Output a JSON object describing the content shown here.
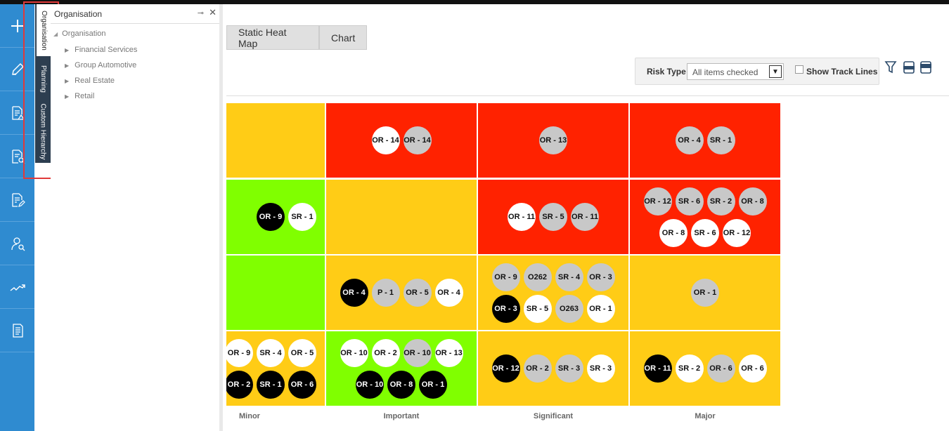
{
  "nav": {
    "items": [
      {
        "icon": "plus-icon"
      },
      {
        "icon": "pencil-icon"
      },
      {
        "icon": "document-warning-icon"
      },
      {
        "icon": "document-search-icon"
      },
      {
        "icon": "document-edit-icon"
      },
      {
        "icon": "user-search-icon"
      },
      {
        "icon": "trend-icon"
      },
      {
        "icon": "document-list-icon"
      }
    ]
  },
  "vertical_tabs": [
    "Organisation",
    "Planning",
    "Custom Hierarchy"
  ],
  "tree": {
    "header": "Organisation",
    "pin_icon": "pin-icon",
    "close": "✕",
    "root": "Organisation",
    "items": [
      "Financial Services",
      "Group Automotive",
      "Real Estate",
      "Retail"
    ]
  },
  "tabs": [
    "Static Heat Map",
    "Chart"
  ],
  "toolbar": {
    "risk_type_label": "Risk Type",
    "risk_type_value": "All items checked",
    "show_track_lines_label": "Show Track Lines",
    "icons": [
      "filter-icon",
      "doc-export-icon",
      "pdf-export-icon"
    ]
  },
  "heatmap": {
    "colors": {
      "red": "#ff2200",
      "orange": "#ffcc16",
      "green": "#80ff00"
    },
    "x_labels": [
      "Minor",
      "Important",
      "Significant",
      "Major"
    ],
    "rows": [
      [
        {
          "color": "orange",
          "bubbles": []
        },
        {
          "color": "red",
          "bubbles": [
            {
              "label": "OR - 14",
              "s": "w"
            },
            {
              "label": "OR - 14",
              "s": "g"
            }
          ]
        },
        {
          "color": "red",
          "bubbles": [
            {
              "label": "OR - 13",
              "s": "g"
            }
          ]
        },
        {
          "color": "red",
          "bubbles": [
            {
              "label": "OR - 4",
              "s": "g"
            },
            {
              "label": "SR - 1",
              "s": "g"
            }
          ]
        }
      ],
      [
        {
          "color": "green",
          "bubbles": [
            {
              "label": "OR - 9",
              "s": "b"
            },
            {
              "label": "SR - 1",
              "s": "w"
            }
          ]
        },
        {
          "color": "orange",
          "bubbles": []
        },
        {
          "color": "red",
          "bubbles": [
            {
              "label": "OR - 11",
              "s": "w"
            },
            {
              "label": "SR - 5",
              "s": "g"
            },
            {
              "label": "OR - 11",
              "s": "g"
            }
          ]
        },
        {
          "color": "red",
          "bubbles": [
            {
              "label": "OR - 12",
              "s": "g"
            },
            {
              "label": "SR - 6",
              "s": "g"
            },
            {
              "label": "SR - 2",
              "s": "g"
            },
            {
              "label": "OR - 8",
              "s": "g"
            },
            {
              "label": "OR - 8",
              "s": "w"
            },
            {
              "label": "SR - 6",
              "s": "w"
            },
            {
              "label": "OR - 12",
              "s": "w"
            }
          ]
        }
      ],
      [
        {
          "color": "green",
          "bubbles": []
        },
        {
          "color": "orange",
          "bubbles": [
            {
              "label": "OR - 4",
              "s": "b"
            },
            {
              "label": "P - 1",
              "s": "g"
            },
            {
              "label": "OR - 5",
              "s": "g"
            },
            {
              "label": "OR - 4",
              "s": "w"
            }
          ]
        },
        {
          "color": "orange",
          "bubbles": [
            {
              "label": "OR - 9",
              "s": "g"
            },
            {
              "label": "O262",
              "s": "g"
            },
            {
              "label": "SR - 4",
              "s": "g"
            },
            {
              "label": "OR - 3",
              "s": "g"
            },
            {
              "label": "OR - 3",
              "s": "b"
            },
            {
              "label": "SR - 5",
              "s": "w"
            },
            {
              "label": "O263",
              "s": "g"
            },
            {
              "label": "OR - 1",
              "s": "w"
            }
          ]
        },
        {
          "color": "orange",
          "bubbles": [
            {
              "label": "OR - 1",
              "s": "g"
            }
          ]
        }
      ],
      [
        {
          "color": "orange",
          "bubbles": [
            {
              "label": "OR - 9",
              "s": "w"
            },
            {
              "label": "SR - 4",
              "s": "w"
            },
            {
              "label": "OR - 5",
              "s": "w"
            },
            {
              "label": "OR - 2",
              "s": "b"
            },
            {
              "label": "SR - 1",
              "s": "b"
            },
            {
              "label": "OR - 6",
              "s": "b"
            }
          ]
        },
        {
          "color": "green",
          "bubbles": [
            {
              "label": "OR - 10",
              "s": "w"
            },
            {
              "label": "OR - 2",
              "s": "w"
            },
            {
              "label": "OR - 10",
              "s": "g"
            },
            {
              "label": "OR - 13",
              "s": "w"
            },
            {
              "label": "OR - 10",
              "s": "b"
            },
            {
              "label": "OR - 8",
              "s": "b"
            },
            {
              "label": "OR - 1",
              "s": "b"
            }
          ]
        },
        {
          "color": "orange",
          "bubbles": [
            {
              "label": "OR - 12",
              "s": "b"
            },
            {
              "label": "OR - 2",
              "s": "g"
            },
            {
              "label": "SR - 3",
              "s": "g"
            },
            {
              "label": "SR - 3",
              "s": "w"
            }
          ]
        },
        {
          "color": "orange",
          "bubbles": [
            {
              "label": "OR - 11",
              "s": "b"
            },
            {
              "label": "SR - 2",
              "s": "w"
            },
            {
              "label": "OR - 6",
              "s": "g"
            },
            {
              "label": "OR - 6",
              "s": "w"
            }
          ]
        }
      ]
    ]
  }
}
